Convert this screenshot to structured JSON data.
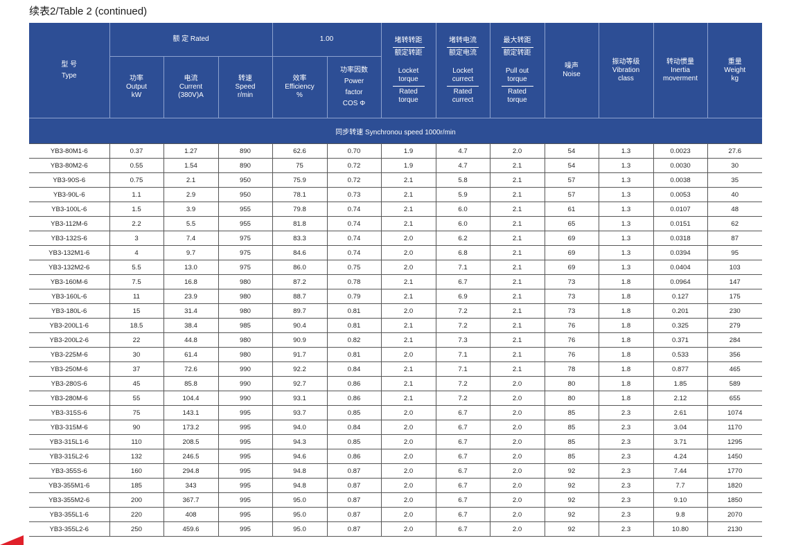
{
  "title": "续表2/Table 2 (continued)",
  "header": {
    "type_cn": "型 号",
    "type_en": "Type",
    "rated_group": "额 定 Rated",
    "pf_group": "1.00",
    "locked_torque": {
      "top_cn1": "堵转转距",
      "top_cn2": "额定转距",
      "en_top": "Locket",
      "en_top2": "torque",
      "en_bot": "Rated",
      "en_bot2": "torque"
    },
    "locked_current": {
      "top_cn1": "堵转电流",
      "top_cn2": "额定电流",
      "en_top": "Locket",
      "en_top2": "currect",
      "en_bot": "Rated",
      "en_bot2": "currect"
    },
    "pullout_torque": {
      "top_cn1": "最大转距",
      "top_cn2": "额定转距",
      "en_top": "Pull out",
      "en_top2": "torque",
      "en_bot": "Rated",
      "en_bot2": "torque"
    },
    "noise": {
      "cn": "噪声",
      "en": "Noise"
    },
    "vibration": {
      "cn": "振动等级",
      "en1": "Vibration",
      "en2": "class"
    },
    "inertia": {
      "cn": "转动惯量",
      "en1": "Inertia",
      "en2": "moverment"
    },
    "weight": {
      "cn": "重量",
      "en1": "Weight",
      "en2": "kg"
    },
    "power": {
      "cn": "功率",
      "en1": "Output",
      "en2": "kW"
    },
    "current": {
      "cn": "电流",
      "en1": "Current",
      "en2": "(380V)A"
    },
    "speed": {
      "cn": "转速",
      "en1": "Speed",
      "en2": "r/min"
    },
    "efficiency": {
      "cn": "效率",
      "en1": "Efficiency",
      "en2": "%"
    },
    "power_factor": {
      "cn": "功率因数",
      "en1": "Power",
      "en2": "factor",
      "en3": "COS Φ"
    }
  },
  "sync_speed": "同步转速 Synchronou speed  1000r/min",
  "rows": [
    [
      "YB3-80M1-6",
      "0.37",
      "1.27",
      "890",
      "62.6",
      "0.70",
      "1.9",
      "4.7",
      "2.0",
      "54",
      "1.3",
      "0.0023",
      "27.6"
    ],
    [
      "YB3-80M2-6",
      "0.55",
      "1.54",
      "890",
      "75",
      "0.72",
      "1.9",
      "4.7",
      "2.1",
      "54",
      "1.3",
      "0.0030",
      "30"
    ],
    [
      "YB3-90S-6",
      "0.75",
      "2.1",
      "950",
      "75.9",
      "0.72",
      "2.1",
      "5.8",
      "2.1",
      "57",
      "1.3",
      "0.0038",
      "35"
    ],
    [
      "YB3-90L-6",
      "1.1",
      "2.9",
      "950",
      "78.1",
      "0.73",
      "2.1",
      "5.9",
      "2.1",
      "57",
      "1.3",
      "0.0053",
      "40"
    ],
    [
      "YB3-100L-6",
      "1.5",
      "3.9",
      "955",
      "79.8",
      "0.74",
      "2.1",
      "6.0",
      "2.1",
      "61",
      "1.3",
      "0.0107",
      "48"
    ],
    [
      "YB3-112M-6",
      "2.2",
      "5.5",
      "955",
      "81.8",
      "0.74",
      "2.1",
      "6.0",
      "2.1",
      "65",
      "1.3",
      "0.0151",
      "62"
    ],
    [
      "YB3-132S-6",
      "3",
      "7.4",
      "975",
      "83.3",
      "0.74",
      "2.0",
      "6.2",
      "2.1",
      "69",
      "1.3",
      "0.0318",
      "87"
    ],
    [
      "YB3-132M1-6",
      "4",
      "9.7",
      "975",
      "84.6",
      "0.74",
      "2.0",
      "6.8",
      "2.1",
      "69",
      "1.3",
      "0.0394",
      "95"
    ],
    [
      "YB3-132M2-6",
      "5.5",
      "13.0",
      "975",
      "86.0",
      "0.75",
      "2.0",
      "7.1",
      "2.1",
      "69",
      "1.3",
      "0.0404",
      "103"
    ],
    [
      "YB3-160M-6",
      "7.5",
      "16.8",
      "980",
      "87.2",
      "0.78",
      "2.1",
      "6.7",
      "2.1",
      "73",
      "1.8",
      "0.0964",
      "147"
    ],
    [
      "YB3-160L-6",
      "11",
      "23.9",
      "980",
      "88.7",
      "0.79",
      "2.1",
      "6.9",
      "2.1",
      "73",
      "1.8",
      "0.127",
      "175"
    ],
    [
      "YB3-180L-6",
      "15",
      "31.4",
      "980",
      "89.7",
      "0.81",
      "2.0",
      "7.2",
      "2.1",
      "73",
      "1.8",
      "0.201",
      "230"
    ],
    [
      "YB3-200L1-6",
      "18.5",
      "38.4",
      "985",
      "90.4",
      "0.81",
      "2.1",
      "7.2",
      "2.1",
      "76",
      "1.8",
      "0.325",
      "279"
    ],
    [
      "YB3-200L2-6",
      "22",
      "44.8",
      "980",
      "90.9",
      "0.82",
      "2.1",
      "7.3",
      "2.1",
      "76",
      "1.8",
      "0.371",
      "284"
    ],
    [
      "YB3-225M-6",
      "30",
      "61.4",
      "980",
      "91.7",
      "0.81",
      "2.0",
      "7.1",
      "2.1",
      "76",
      "1.8",
      "0.533",
      "356"
    ],
    [
      "YB3-250M-6",
      "37",
      "72.6",
      "990",
      "92.2",
      "0.84",
      "2.1",
      "7.1",
      "2.1",
      "78",
      "1.8",
      "0.877",
      "465"
    ],
    [
      "YB3-280S-6",
      "45",
      "85.8",
      "990",
      "92.7",
      "0.86",
      "2.1",
      "7.2",
      "2.0",
      "80",
      "1.8",
      "1.85",
      "589"
    ],
    [
      "YB3-280M-6",
      "55",
      "104.4",
      "990",
      "93.1",
      "0.86",
      "2.1",
      "7.2",
      "2.0",
      "80",
      "1.8",
      "2.12",
      "655"
    ],
    [
      "YB3-315S-6",
      "75",
      "143.1",
      "995",
      "93.7",
      "0.85",
      "2.0",
      "6.7",
      "2.0",
      "85",
      "2.3",
      "2.61",
      "1074"
    ],
    [
      "YB3-315M-6",
      "90",
      "173.2",
      "995",
      "94.0",
      "0.84",
      "2.0",
      "6.7",
      "2.0",
      "85",
      "2.3",
      "3.04",
      "1170"
    ],
    [
      "YB3-315L1-6",
      "110",
      "208.5",
      "995",
      "94.3",
      "0.85",
      "2.0",
      "6.7",
      "2.0",
      "85",
      "2.3",
      "3.71",
      "1295"
    ],
    [
      "YB3-315L2-6",
      "132",
      "246.5",
      "995",
      "94.6",
      "0.86",
      "2.0",
      "6.7",
      "2.0",
      "85",
      "2.3",
      "4.24",
      "1450"
    ],
    [
      "YB3-355S-6",
      "160",
      "294.8",
      "995",
      "94.8",
      "0.87",
      "2.0",
      "6.7",
      "2.0",
      "92",
      "2.3",
      "7.44",
      "1770"
    ],
    [
      "YB3-355M1-6",
      "185",
      "343",
      "995",
      "94.8",
      "0.87",
      "2.0",
      "6.7",
      "2.0",
      "92",
      "2.3",
      "7.7",
      "1820"
    ],
    [
      "YB3-355M2-6",
      "200",
      "367.7",
      "995",
      "95.0",
      "0.87",
      "2.0",
      "6.7",
      "2.0",
      "92",
      "2.3",
      "9.10",
      "1850"
    ],
    [
      "YB3-355L1-6",
      "220",
      "408",
      "995",
      "95.0",
      "0.87",
      "2.0",
      "6.7",
      "2.0",
      "92",
      "2.3",
      "9.8",
      "2070"
    ],
    [
      "YB3-355L2-6",
      "250",
      "459.6",
      "995",
      "95.0",
      "0.87",
      "2.0",
      "6.7",
      "2.0",
      "92",
      "2.3",
      "10.80",
      "2130"
    ]
  ]
}
